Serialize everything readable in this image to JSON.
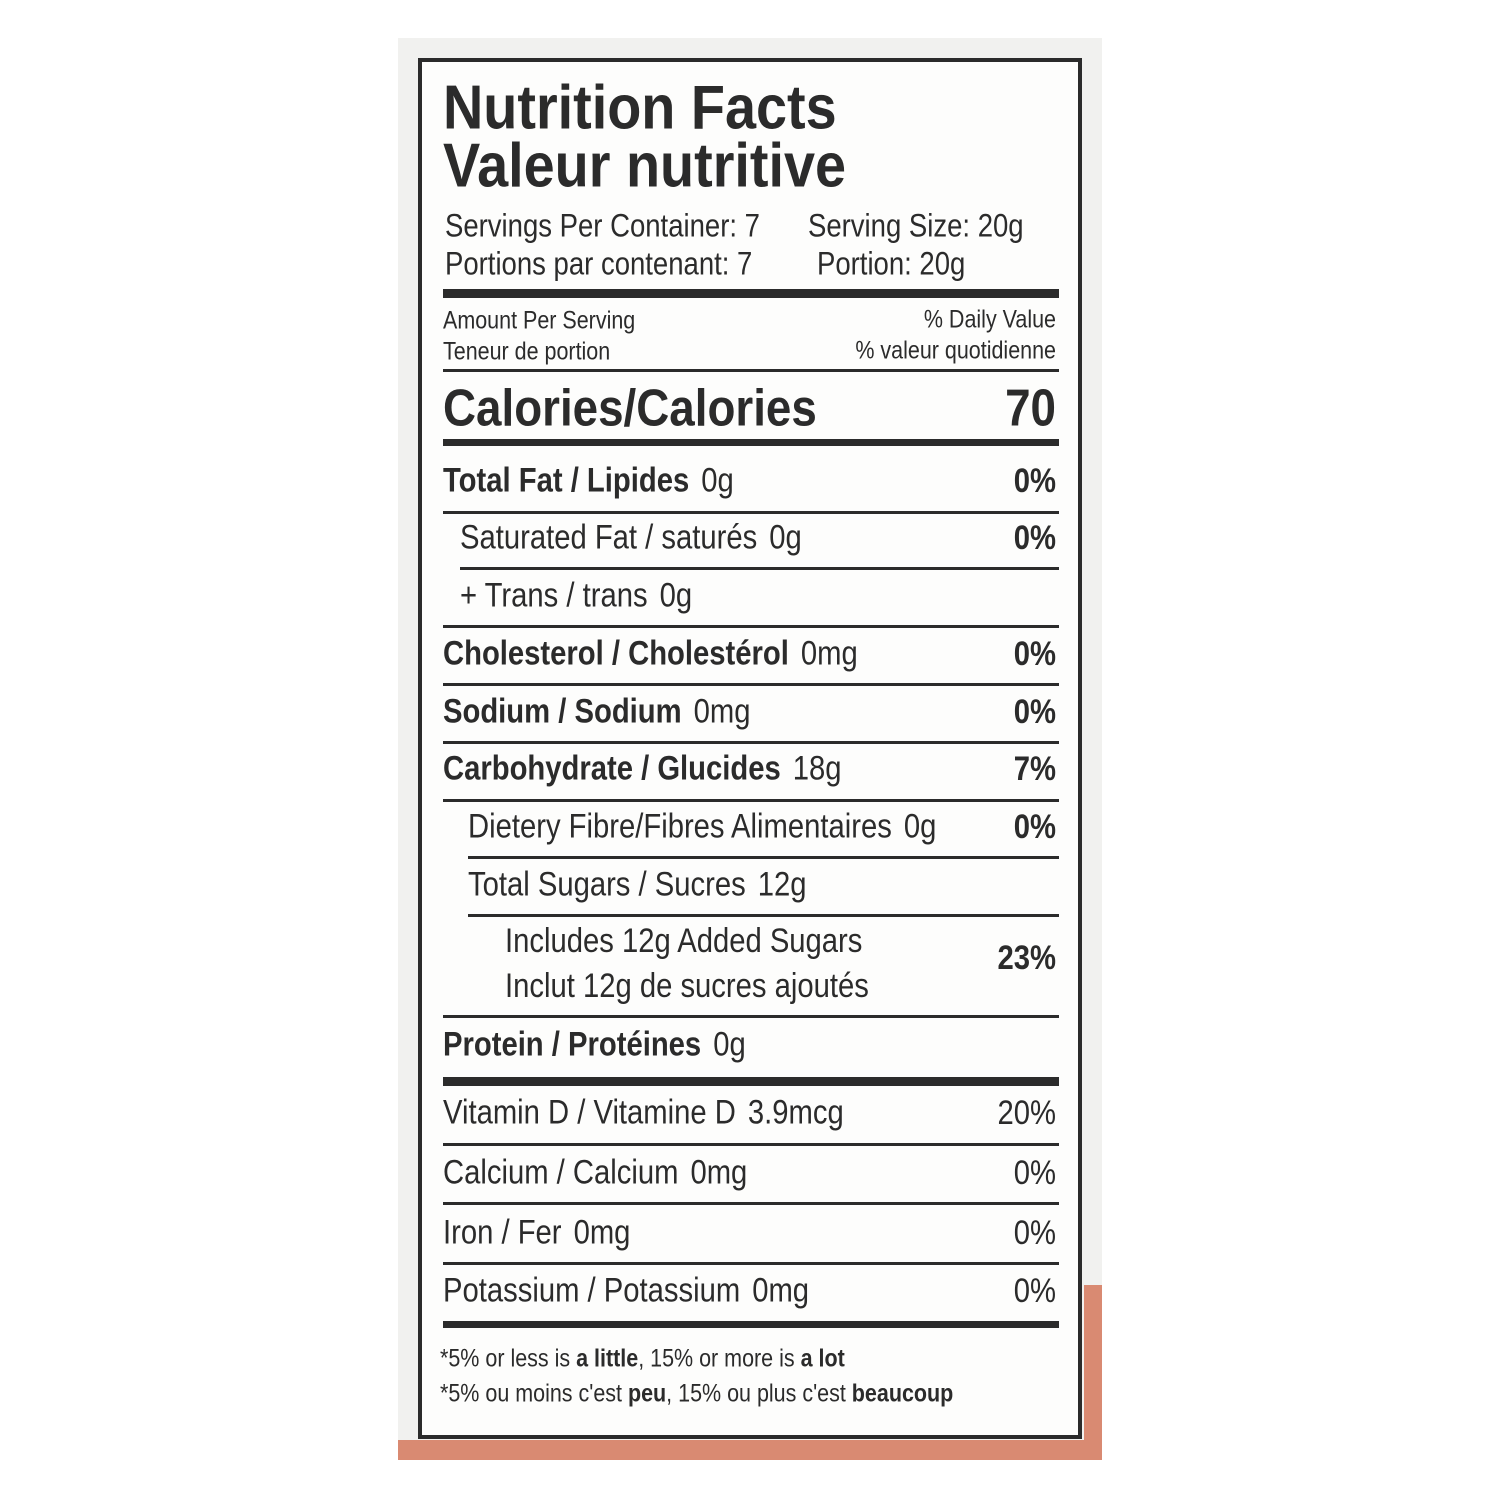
{
  "title": "Nutrition Facts",
  "subtitle": "Valeur nutritive",
  "servings": {
    "en": [
      "Servings Per Container: 7",
      "Serving Size: 20g"
    ],
    "fr": [
      "Portions par contenant: 7",
      "Portion: 20g"
    ]
  },
  "amount_header": {
    "en": "Amount Per Serving",
    "fr": "Teneur de portion"
  },
  "daily_value_header": {
    "en": "% Daily Value",
    "fr": "% valeur quotidienne"
  },
  "calories": {
    "label": "Calories/Calories",
    "value": "70"
  },
  "rows": [
    {
      "label": "Total Fat / Lipides",
      "amount": "0g",
      "daily_value": "0%"
    },
    {
      "label": "Saturated Fat / saturés",
      "amount": "0g",
      "daily_value": "0%"
    },
    {
      "label": "+ Trans / trans",
      "amount": "0g"
    },
    {
      "label": "Cholesterol / Cholestérol",
      "amount": "0mg",
      "daily_value": "0%"
    },
    {
      "label": "Sodium / Sodium",
      "amount": "0mg",
      "daily_value": "0%"
    },
    {
      "label": "Carbohydrate / Glucides",
      "amount": "18g",
      "daily_value": "7%"
    },
    {
      "label": "Dietery Fibre/Fibres Alimentaires",
      "amount": "0g",
      "daily_value": "0%"
    },
    {
      "label": "Total Sugars / Sucres",
      "amount": "12g"
    },
    {
      "lines": [
        "Includes 12g Added Sugars",
        "Inclut 12g de sucres ajoutés"
      ],
      "daily_value": "23%"
    },
    {
      "label": "Protein / Protéines",
      "amount": "0g"
    },
    {
      "label": "Vitamin D / Vitamine D",
      "amount": "3.9mcg",
      "daily_value": "20%"
    },
    {
      "label": "Calcium / Calcium",
      "amount": "0mg",
      "daily_value": "0%"
    },
    {
      "label": "Iron / Fer",
      "amount": "0mg",
      "daily_value": "0%"
    },
    {
      "label": "Potassium / Potassium",
      "amount": "0mg",
      "daily_value": "0%"
    }
  ],
  "footnotes": [
    [
      "*5% or less is ",
      "a little",
      ", 15% or more is ",
      "a lot"
    ],
    [
      "*5% ou moins c'est ",
      "peu",
      ", 15% ou plus c'est ",
      "beaucoup"
    ]
  ]
}
